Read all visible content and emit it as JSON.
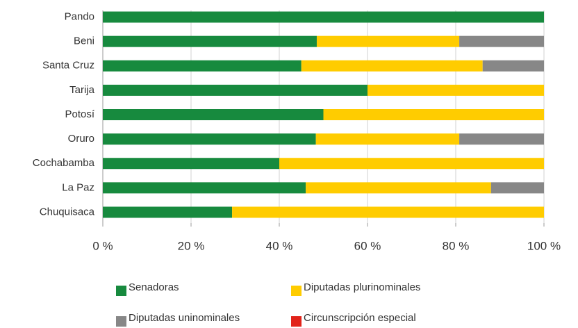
{
  "chart_data": {
    "type": "stacked-barh",
    "categories": [
      "Pando",
      "Beni",
      "Santa Cruz",
      "Tarija",
      "Potosí",
      "Oruro",
      "Cochabamba",
      "La Paz",
      "Chuquisaca"
    ],
    "series": [
      {
        "name": "Senadoras",
        "color": "#178a3e",
        "values": [
          100,
          48.5,
          45,
          60,
          50,
          48.3,
          40,
          46,
          29.3
        ]
      },
      {
        "name": "Diputadas plurinominales",
        "color": "#ffcc00",
        "values": [
          0,
          32.3,
          41.1,
          40,
          50,
          32.5,
          60,
          42,
          70.7
        ]
      },
      {
        "name": "Diputadas uninominales",
        "color": "#878787",
        "values": [
          0,
          19.2,
          13.9,
          0,
          0,
          19.2,
          0,
          12,
          0
        ]
      },
      {
        "name": "Circunscripción especial",
        "color": "#e2231a",
        "values": [
          0,
          0,
          0,
          0,
          0,
          0,
          0,
          0,
          0
        ]
      }
    ],
    "xlim": [
      0,
      100
    ],
    "xticks": [
      {
        "value": 0,
        "label": "0 %"
      },
      {
        "value": 20,
        "label": "20 %"
      },
      {
        "value": 40,
        "label": "40 %"
      },
      {
        "value": 60,
        "label": "60 %"
      },
      {
        "value": 80,
        "label": "80 %"
      },
      {
        "value": 100,
        "label": "100 %"
      }
    ],
    "grid": true
  }
}
